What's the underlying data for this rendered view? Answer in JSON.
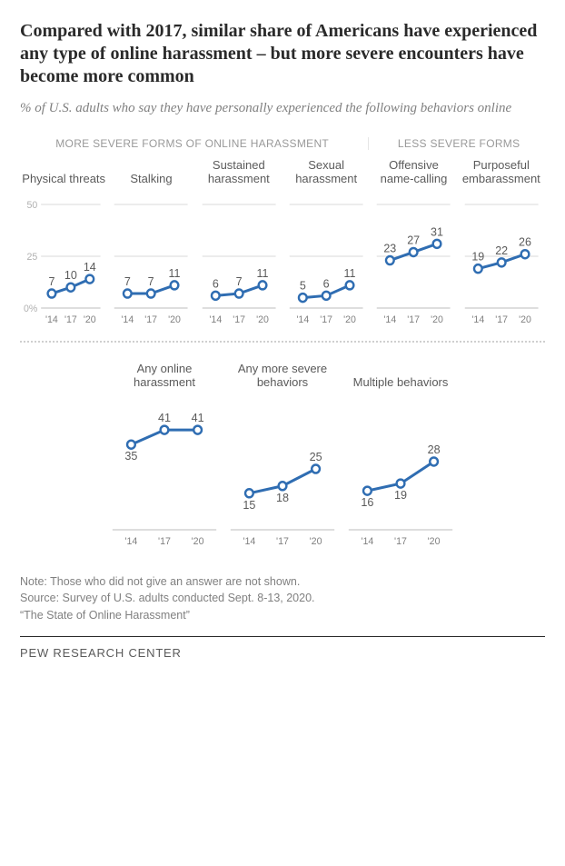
{
  "title": "Compared with 2017, similar share of Americans have experienced any type of online harassment – but more severe encounters have become more common",
  "subtitle": "% of U.S. adults who say they have personally experienced the following behaviors online",
  "groups": {
    "more_severe": "MORE SEVERE FORMS OF ONLINE HARASSMENT",
    "less_severe": "LESS SEVERE FORMS"
  },
  "style": {
    "line_color": "#2f6db2",
    "marker_fill": "#ffffff",
    "marker_stroke": "#2f6db2",
    "grid_color": "#d9d9d9",
    "baseline_color": "#bdbdbd",
    "label_color": "#5a5a5a",
    "ytick_color": "#b0b0b0",
    "xtick_color": "#808080",
    "line_width": 3,
    "marker_radius": 4.5
  },
  "row1": {
    "ylim": [
      0,
      50
    ],
    "yticks": [
      0,
      25,
      50
    ],
    "ytick_labels": [
      "0%",
      "25",
      "50"
    ],
    "xlabels": [
      "'14",
      "'17",
      "'20"
    ],
    "show_yaxis_on_first_only": true,
    "panels": [
      {
        "title": "Physical threats",
        "values": [
          7,
          10,
          14
        ]
      },
      {
        "title": "Stalking",
        "values": [
          7,
          7,
          11
        ]
      },
      {
        "title": "Sustained harassment",
        "values": [
          6,
          7,
          11
        ]
      },
      {
        "title": "Sexual harassment",
        "values": [
          5,
          6,
          11
        ]
      },
      {
        "title": "Offensive name-calling",
        "values": [
          23,
          27,
          31
        ]
      },
      {
        "title": "Purposeful embarassment",
        "values": [
          19,
          22,
          26
        ]
      }
    ]
  },
  "row2": {
    "ylim": [
      0,
      50
    ],
    "xlabels": [
      "'14",
      "'17",
      "'20"
    ],
    "panels": [
      {
        "title": "Any online harassment",
        "values": [
          35,
          41,
          41
        ],
        "label_pos": [
          "below",
          "above",
          "above"
        ]
      },
      {
        "title": "Any more severe behaviors",
        "values": [
          15,
          18,
          25
        ],
        "label_pos": [
          "below",
          "below",
          "above"
        ]
      },
      {
        "title": "Multiple behaviors",
        "values": [
          16,
          19,
          28
        ],
        "label_pos": [
          "below",
          "below",
          "above"
        ]
      }
    ]
  },
  "notes": {
    "note": "Note: Those who did not give an answer are not shown.",
    "source": "Source: Survey of U.S. adults conducted Sept. 8-13, 2020.",
    "report": "“The State of Online Harassment”"
  },
  "brand": "PEW RESEARCH CENTER"
}
